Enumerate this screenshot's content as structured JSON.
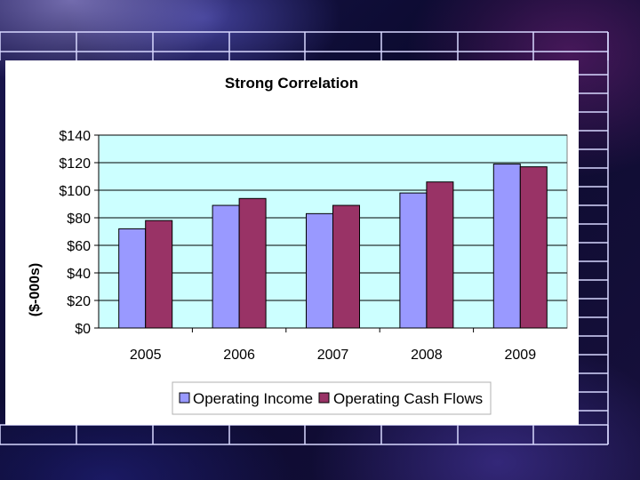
{
  "chart_data": {
    "type": "bar",
    "title": "Strong Correlation",
    "xlabel": "",
    "ylabel": "($-000s)",
    "categories": [
      "2005",
      "2006",
      "2007",
      "2008",
      "2009"
    ],
    "series": [
      {
        "name": "Operating Income",
        "color": "#9999ff",
        "values": [
          72,
          89,
          83,
          98,
          119
        ]
      },
      {
        "name": "Operating Cash Flows",
        "color": "#993366",
        "values": [
          78,
          94,
          89,
          106,
          117
        ]
      }
    ],
    "ylim": [
      0,
      140
    ],
    "yticks": [
      0,
      20,
      40,
      60,
      80,
      100,
      120,
      140
    ],
    "ytick_labels": [
      "$0",
      "$20",
      "$40",
      "$60",
      "$80",
      "$100",
      "$120",
      "$140"
    ],
    "plot_background": "#ccffff",
    "grid": true,
    "legend_position": "bottom"
  }
}
